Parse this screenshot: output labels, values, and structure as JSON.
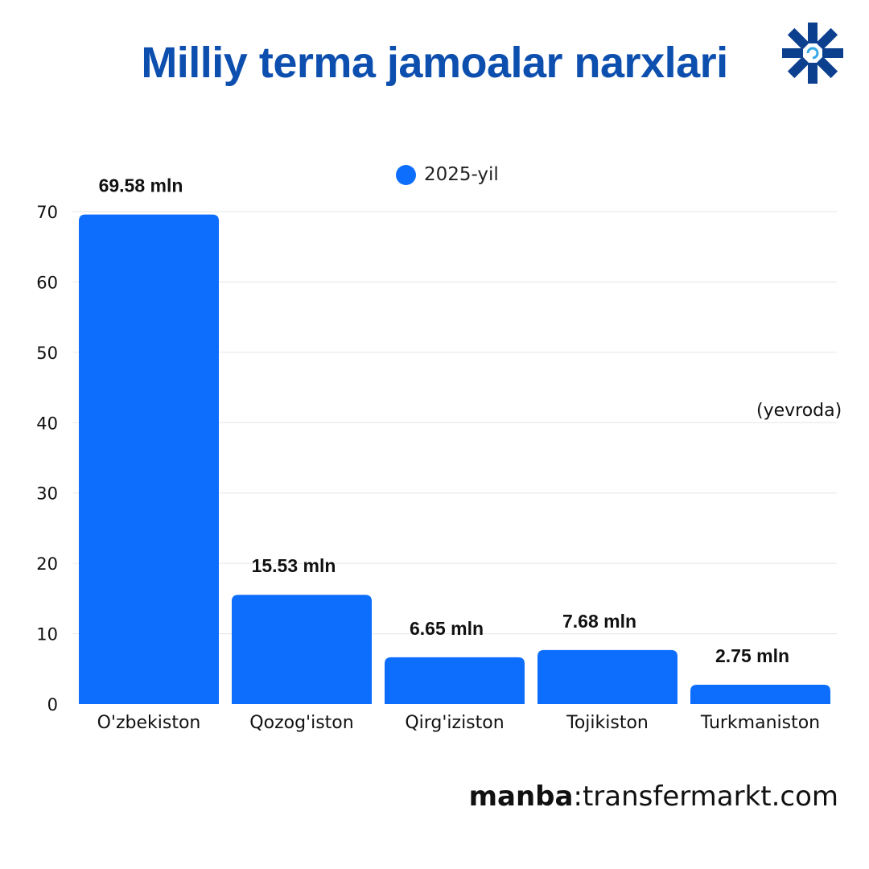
{
  "header": {
    "title": "Milliy terma jamoalar narxlari",
    "logo_icon": "snowflake-star-logo-icon"
  },
  "colors": {
    "title": "#0d4fae",
    "bar": "#0d6efd",
    "grid": "#e6e6e6",
    "logo": "#0d3f8f",
    "logo_accent": "#37a8e8"
  },
  "legend": {
    "label": "2025-yil"
  },
  "unit_note": "(yevroda)",
  "source": {
    "prefix": "manba",
    "separator": ":",
    "site": "transfermarkt.com"
  },
  "chart_data": {
    "type": "bar",
    "title": "Milliy terma jamoalar narxlari",
    "xlabel": "",
    "ylabel": "",
    "categories": [
      "O'zbekiston",
      "Qozog'iston",
      "Qirg'iziston",
      "Tojikiston",
      "Turkmaniston"
    ],
    "series": [
      {
        "name": "2025-yil",
        "values": [
          69.58,
          15.53,
          6.65,
          7.68,
          2.75
        ],
        "labels": [
          "69.58 mln",
          "15.53  mln",
          "6.65  mln",
          "7.68 mln",
          "2.75 mln"
        ]
      }
    ],
    "ylim": [
      0,
      70
    ],
    "yticks": [
      0,
      10,
      20,
      30,
      40,
      50,
      60,
      70
    ],
    "grid": true,
    "legend_position": "top-center"
  }
}
